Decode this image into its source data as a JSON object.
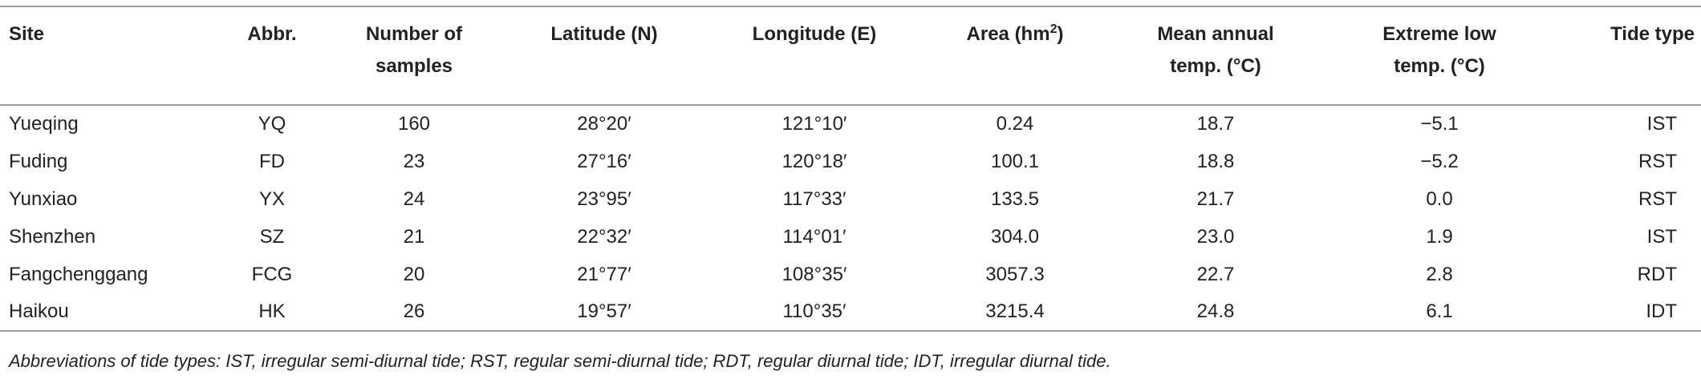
{
  "table": {
    "header": {
      "site": "Site",
      "abbr": "Abbr.",
      "samples": [
        "Number of",
        "samples"
      ],
      "latitude": "Latitude (N)",
      "longitude": "Longitude (E)",
      "area": {
        "text": "Area (hm",
        "superscript": "2",
        "suffix": ")"
      },
      "mean_temp": [
        "Mean annual",
        "temp. (°C)"
      ],
      "low_temp": [
        "Extreme low",
        "temp. (°C)"
      ],
      "tide": "Tide type"
    },
    "rows": [
      [
        "Yueqing",
        "YQ",
        "160",
        "28°20′",
        "121°10′",
        "0.24",
        "18.7",
        "−5.1",
        "IST"
      ],
      [
        "Fuding",
        "FD",
        "23",
        "27°16′",
        "120°18′",
        "100.1",
        "18.8",
        "−5.2",
        "RST"
      ],
      [
        "Yunxiao",
        "YX",
        "24",
        "23°95′",
        "117°33′",
        "133.5",
        "21.7",
        "0.0",
        "RST"
      ],
      [
        "Shenzhen",
        "SZ",
        "21",
        "22°32′",
        "114°01′",
        "304.0",
        "23.0",
        "1.9",
        "IST"
      ],
      [
        "Fangchenggang",
        "FCG",
        "20",
        "21°77′",
        "108°35′",
        "3057.3",
        "22.7",
        "2.8",
        "RDT"
      ],
      [
        "Haikou",
        "HK",
        "26",
        "19°57′",
        "110°35′",
        "3215.4",
        "24.8",
        "6.1",
        "IDT"
      ]
    ],
    "footnote": "Abbreviations of tide types: IST, irregular semi-diurnal tide; RST, regular semi-diurnal tide; RDT, regular diurnal tide; IDT, irregular diurnal tide."
  }
}
